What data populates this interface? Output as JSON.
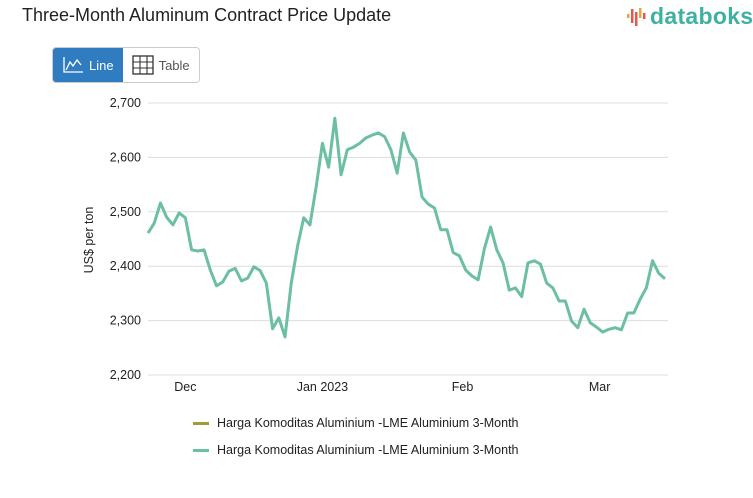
{
  "header": {
    "title": "Three-Month Aluminum Contract Price Update",
    "logo_text": "databoks"
  },
  "toggle": {
    "line_label": "Line",
    "table_label": "Table"
  },
  "colors": {
    "line": "#6cbfa3",
    "legend_first": "#a49a3a",
    "active": "#2f7dc0",
    "logo": "#3fb1a3"
  },
  "chart_data": {
    "type": "line",
    "title": "Three-Month Aluminum Contract Price Update",
    "ylabel": "US$ per ton",
    "xlabel": "",
    "ylim": [
      2200,
      2700
    ],
    "y_ticks": [
      {
        "v": 2200,
        "label": "2,200"
      },
      {
        "v": 2300,
        "label": "2,300"
      },
      {
        "v": 2400,
        "label": "2,400"
      },
      {
        "v": 2500,
        "label": "2,500"
      },
      {
        "v": 2600,
        "label": "2,600"
      },
      {
        "v": 2700,
        "label": "2,700"
      }
    ],
    "x_ticks": [
      {
        "label": "Dec",
        "index": 6
      },
      {
        "label": "Jan 2023",
        "index": 28
      },
      {
        "label": "Feb",
        "index": 50.5
      },
      {
        "label": "Mar",
        "index": 72.5
      }
    ],
    "grid": true,
    "legend_placement": "bottom",
    "series": [
      {
        "name": "Harga Komoditas Aluminium -LME Aluminium 3-Month",
        "values": []
      },
      {
        "name": "Harga Komoditas Aluminium -LME Aluminium 3-Month",
        "values": [
          2461,
          2479,
          2516,
          2490,
          2476,
          2498,
          2489,
          2430,
          2428,
          2430,
          2393,
          2364,
          2371,
          2391,
          2396,
          2373,
          2378,
          2399,
          2392,
          2369,
          2285,
          2305,
          2270,
          2369,
          2436,
          2489,
          2476,
          2546,
          2626,
          2582,
          2672,
          2568,
          2614,
          2619,
          2626,
          2636,
          2641,
          2645,
          2638,
          2614,
          2571,
          2645,
          2610,
          2595,
          2527,
          2514,
          2507,
          2467,
          2467,
          2425,
          2419,
          2393,
          2382,
          2375,
          2432,
          2472,
          2430,
          2406,
          2356,
          2360,
          2344,
          2406,
          2410,
          2404,
          2369,
          2360,
          2336,
          2336,
          2299,
          2287,
          2321,
          2296,
          2288,
          2279,
          2284,
          2287,
          2283,
          2314,
          2314,
          2339,
          2360,
          2410,
          2387,
          2377
        ]
      }
    ]
  }
}
